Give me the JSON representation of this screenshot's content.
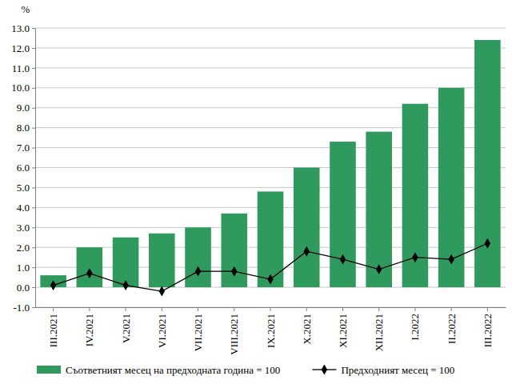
{
  "chart_data": {
    "type": "bar",
    "y_label": "%",
    "categories": [
      "III.2021",
      "IV.2021",
      "V.2021",
      "VI.2021",
      "VII.2021",
      "VIII.2021",
      "IX.2021",
      "X.2021",
      "XI.2021",
      "XII.2021",
      "I.2022",
      "II.2022",
      "III.2022"
    ],
    "series": [
      {
        "name": "Съответният месец на предходната година = 100",
        "type": "bar",
        "color": "#2f9a5e",
        "values": [
          0.6,
          2.0,
          2.5,
          2.7,
          3.0,
          3.7,
          4.8,
          6.0,
          7.3,
          7.8,
          9.2,
          10.0,
          12.4
        ]
      },
      {
        "name": "Предходният месец = 100",
        "type": "line",
        "color": "#000000",
        "marker": "diamond",
        "values": [
          0.1,
          0.7,
          0.1,
          -0.2,
          0.8,
          0.8,
          0.4,
          1.8,
          1.4,
          0.9,
          1.5,
          1.4,
          2.2
        ]
      }
    ],
    "ylim": [
      -1,
      13
    ],
    "yticks": [
      {
        "value": -1,
        "label": "-1.0"
      },
      {
        "value": 0,
        "label": "0.0"
      },
      {
        "value": 1,
        "label": "1.0"
      },
      {
        "value": 2,
        "label": "2.0"
      },
      {
        "value": 3,
        "label": "3.0"
      },
      {
        "value": 4,
        "label": "4.0"
      },
      {
        "value": 5,
        "label": "5.0"
      },
      {
        "value": 6,
        "label": "6.0"
      },
      {
        "value": 7,
        "label": "7.0"
      },
      {
        "value": 8,
        "label": "8.0"
      },
      {
        "value": 9,
        "label": "9.0"
      },
      {
        "value": 10,
        "label": "10.0"
      },
      {
        "value": 11,
        "label": "11.0"
      },
      {
        "value": 12,
        "label": "12.0"
      },
      {
        "value": 13,
        "label": "13.0"
      }
    ],
    "grid": true,
    "legend": "bottom"
  }
}
